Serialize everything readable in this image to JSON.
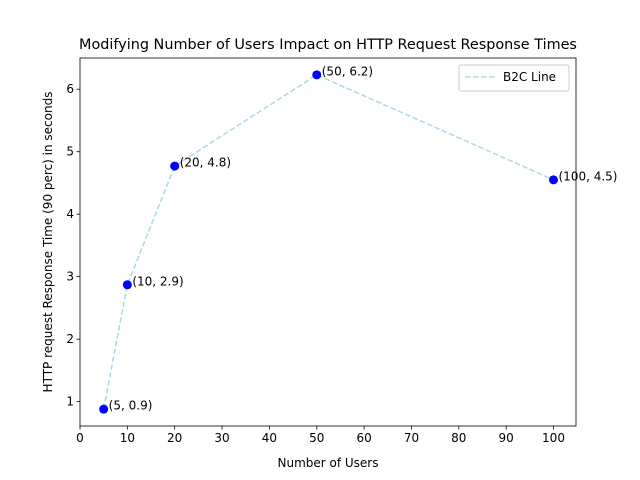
{
  "chart_data": {
    "type": "line",
    "title": "Modifying Number of Users Impact on HTTP Request Response Times",
    "xlabel": "Number of Users",
    "ylabel": "HTTP request Response Time (90 perc) in seconds",
    "x": [
      5,
      10,
      20,
      50,
      100
    ],
    "series": [
      {
        "name": "B2C Line",
        "values": [
          0.88,
          2.87,
          4.77,
          6.23,
          4.55
        ],
        "line_color": "#add8e6",
        "marker_color": "#0000ff",
        "line_style": "dashed"
      }
    ],
    "data_labels": [
      "(5, 0.9)",
      "(10, 2.9)",
      "(20, 4.8)",
      "(50, 6.2)",
      "(100, 4.5)"
    ],
    "xlim": [
      0,
      104.75
    ],
    "ylim": [
      0.61,
      6.5
    ],
    "xticks": [
      0,
      10,
      20,
      30,
      40,
      50,
      60,
      70,
      80,
      90,
      100
    ],
    "yticks": [
      1,
      2,
      3,
      4,
      5,
      6
    ],
    "grid": false,
    "legend_position": "top-right"
  }
}
